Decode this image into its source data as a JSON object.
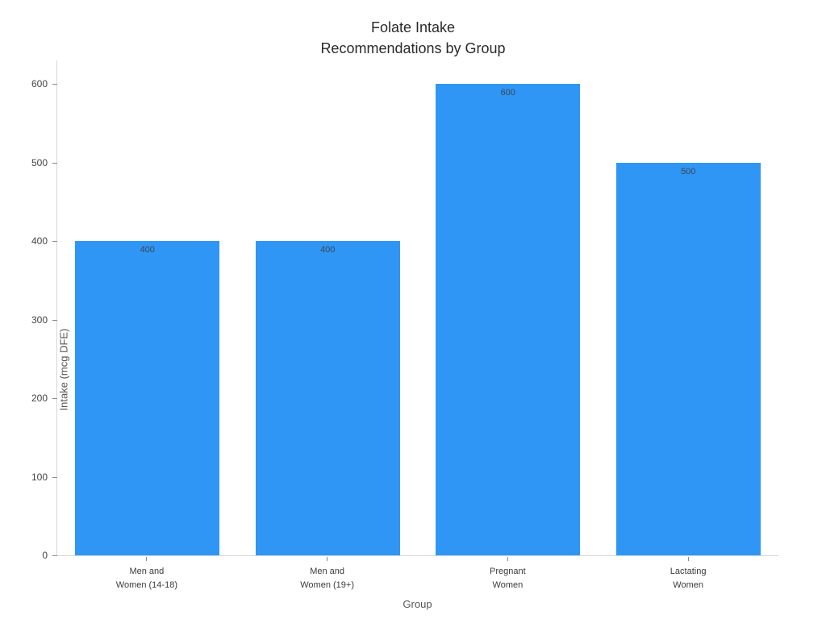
{
  "title": "Folate Intake\nRecommendations by Group",
  "chart_data": {
    "type": "bar",
    "title": "Folate Intake Recommendations by Group",
    "categories": [
      "Men and\nWomen (14-18)",
      "Men and\nWomen (19+)",
      "Pregnant\nWomen",
      "Lactating\nWomen"
    ],
    "values": [
      400,
      400,
      600,
      500
    ],
    "value_labels": [
      "400",
      "400",
      "600",
      "500"
    ],
    "xlabel": "Group",
    "ylabel": "Intake (mcg DFE)",
    "ylim": [
      0,
      630
    ],
    "yticks": [
      0,
      100,
      200,
      300,
      400,
      500,
      600
    ],
    "bar_color": "#2f96f5",
    "value_label_color": "#3b4650",
    "grid": false,
    "legend": false
  }
}
